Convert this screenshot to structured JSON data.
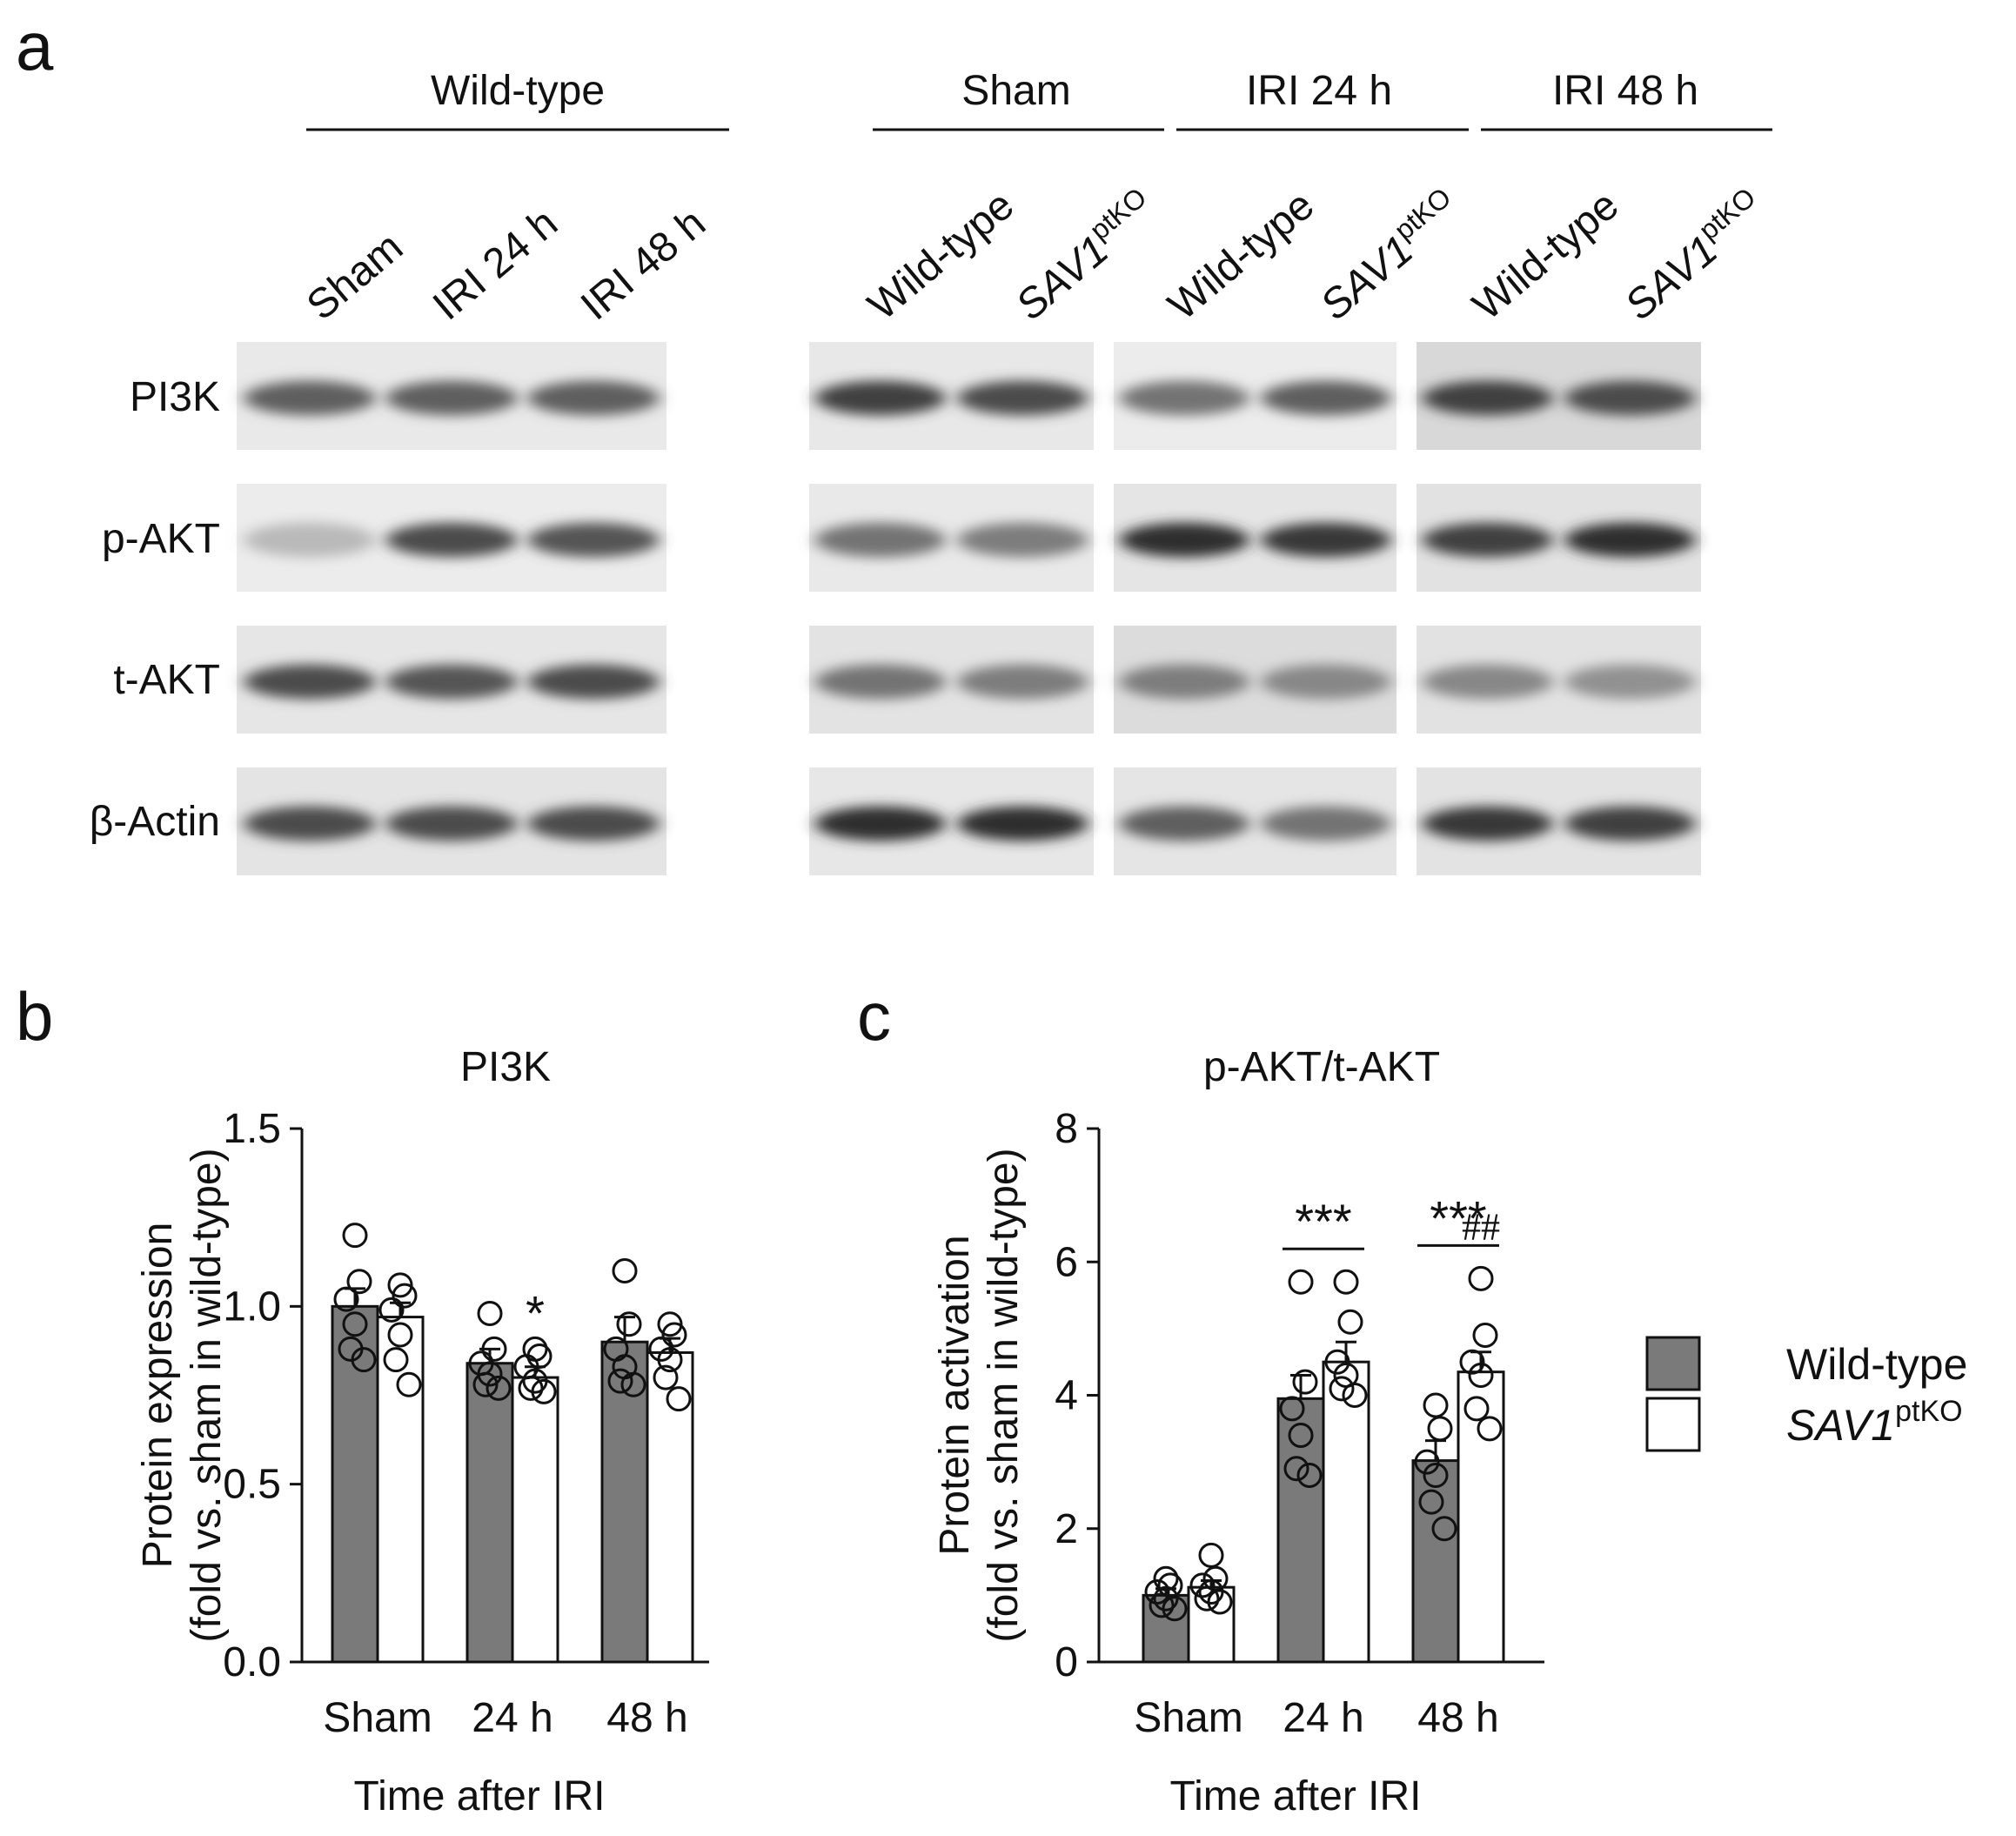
{
  "panel_a": {
    "letter": "a",
    "left_group": {
      "header": "Wild-type",
      "lanes": [
        "Sham",
        "IRI 24 h",
        "IRI 48 h"
      ]
    },
    "right_groups": [
      {
        "header": "Sham",
        "lanes": [
          {
            "base": "Wild-type",
            "sup": ""
          },
          {
            "base": "SAV1",
            "sup": "ptKO"
          }
        ]
      },
      {
        "header": "IRI 24 h",
        "lanes": [
          {
            "base": "Wild-type",
            "sup": ""
          },
          {
            "base": "SAV1",
            "sup": "ptKO"
          }
        ]
      },
      {
        "header": "IRI 48 h",
        "lanes": [
          {
            "base": "Wild-type",
            "sup": ""
          },
          {
            "base": "SAV1",
            "sup": "ptKO"
          }
        ]
      }
    ],
    "blot_rows": [
      "PI3K",
      "p-AKT",
      "t-AKT",
      "β-Actin"
    ]
  },
  "legend": [
    {
      "base": "Wild-type",
      "sup": "",
      "fill": "#7a7a7a",
      "italic": false
    },
    {
      "base": "SAV1",
      "sup": "ptKO",
      "fill": "#ffffff",
      "italic": true
    }
  ],
  "chart_data": [
    {
      "type": "bar",
      "panel": "b",
      "title": "PI3K",
      "xlabel": "Time after IRI",
      "ylabel": [
        "Protein expression",
        "(fold vs. sham in wild-type)"
      ],
      "categories": [
        "Sham",
        "24 h",
        "48 h"
      ],
      "ylim": [
        0,
        1.5
      ],
      "yticks": [
        "0.0",
        "0.5",
        "1.0",
        "1.5"
      ],
      "series": [
        {
          "name": "Wild-type",
          "color": "#7a7a7a",
          "values": [
            1.0,
            0.84,
            0.9
          ],
          "errors": [
            0.05,
            0.04,
            0.07
          ],
          "points": [
            [
              1.2,
              1.07,
              1.02,
              0.95,
              0.88,
              0.85
            ],
            [
              0.98,
              0.88,
              0.84,
              0.81,
              0.78,
              0.77
            ],
            [
              1.1,
              0.95,
              0.88,
              0.83,
              0.79,
              0.78
            ]
          ]
        },
        {
          "name": "SAV1ptKO",
          "color": "#ffffff",
          "values": [
            0.97,
            0.8,
            0.87
          ],
          "errors": [
            0.04,
            0.03,
            0.04
          ],
          "points": [
            [
              1.06,
              1.03,
              0.99,
              0.92,
              0.85,
              0.78
            ],
            [
              0.88,
              0.86,
              0.83,
              0.79,
              0.77,
              0.76
            ],
            [
              0.95,
              0.92,
              0.88,
              0.85,
              0.8,
              0.74
            ]
          ]
        }
      ],
      "annotations": [
        {
          "category_index": 1,
          "series_index": 1,
          "text": "*"
        }
      ]
    },
    {
      "type": "bar",
      "panel": "c",
      "title": "p-AKT/t-AKT",
      "xlabel": "Time after IRI",
      "ylabel": [
        "Protein activation",
        "(fold vs. sham in wild-type)"
      ],
      "categories": [
        "Sham",
        "24 h",
        "48 h"
      ],
      "ylim": [
        0,
        8
      ],
      "yticks": [
        "0",
        "2",
        "4",
        "6",
        "8"
      ],
      "series": [
        {
          "name": "Wild-type",
          "color": "#7a7a7a",
          "values": [
            1.0,
            3.95,
            3.02
          ],
          "errors": [
            0.1,
            0.35,
            0.3
          ],
          "points": [
            [
              1.25,
              1.15,
              1.05,
              0.95,
              0.85,
              0.8
            ],
            [
              5.7,
              4.2,
              3.8,
              3.4,
              2.9,
              2.8
            ],
            [
              3.85,
              3.5,
              3.0,
              2.8,
              2.4,
              2.0
            ]
          ]
        },
        {
          "name": "SAV1ptKO",
          "color": "#ffffff",
          "values": [
            1.12,
            4.5,
            4.35
          ],
          "errors": [
            0.1,
            0.3,
            0.3
          ],
          "points": [
            [
              1.6,
              1.25,
              1.15,
              1.05,
              0.95,
              0.9
            ],
            [
              5.7,
              5.1,
              4.5,
              4.3,
              4.1,
              4.0
            ],
            [
              5.75,
              4.9,
              4.5,
              4.3,
              3.8,
              3.5
            ]
          ]
        }
      ],
      "annotations": [
        {
          "category_index": 1,
          "text": "***",
          "bracket": true
        },
        {
          "category_index": 2,
          "text": "***",
          "bracket": true
        },
        {
          "category_index": 2,
          "series_index": 1,
          "text": "##"
        }
      ]
    }
  ]
}
